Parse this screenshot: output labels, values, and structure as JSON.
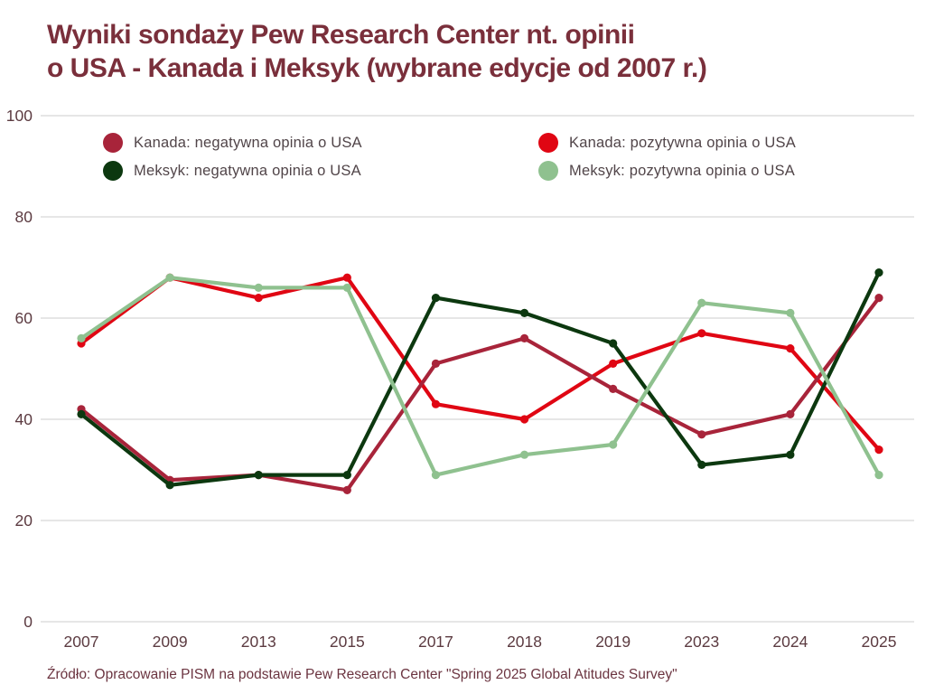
{
  "page": {
    "title_line1": "Wyniki sondaży Pew Research Center nt. opinii",
    "title_line2": "o USA - Kanada i Meksyk (wybrane edycje od 2007 r.)",
    "source": "Źródło: Opracowanie PISM na podstawie Pew Research Center \"Spring 2025 Global Atitudes Survey\"",
    "colors": {
      "title": "#7A2F3B",
      "axis_labels": "#5C3B41",
      "source_text": "#6B3440",
      "gridline": "#D8D8D8",
      "legend_text": "#514549",
      "background": "#FFFFFF"
    }
  },
  "chart_data": {
    "type": "line",
    "title": "Wyniki sondaży Pew Research Center nt. opinii o USA - Kanada i Meksyk (wybrane edycje od 2007 r.)",
    "categories": [
      "2007",
      "2009",
      "2013",
      "2015",
      "2017",
      "2018",
      "2019",
      "2023",
      "2024",
      "2025"
    ],
    "series": [
      {
        "name": "Kanada: negatywna opinia o USA",
        "color": "#A8243A",
        "values": [
          42,
          28,
          29,
          26,
          51,
          56,
          46,
          37,
          41,
          64
        ]
      },
      {
        "name": "Kanada: pozytywna opinia o USA",
        "color": "#E00613",
        "values": [
          55,
          68,
          64,
          68,
          43,
          40,
          51,
          57,
          54,
          34
        ]
      },
      {
        "name": "Meksyk: negatywna opinia o USA",
        "color": "#0C380F",
        "values": [
          41,
          27,
          29,
          29,
          64,
          61,
          55,
          31,
          33,
          69
        ]
      },
      {
        "name": "Meksyk: pozytywna opinia o USA",
        "color": "#8FC18F",
        "values": [
          56,
          68,
          66,
          66,
          29,
          33,
          35,
          63,
          61,
          29
        ]
      }
    ],
    "xlabel": "",
    "ylabel": "",
    "ylim": [
      0,
      100
    ],
    "yticks": [
      0,
      20,
      40,
      60,
      80,
      100
    ],
    "grid": "horizontal",
    "legend_position": "top",
    "legend_columns": [
      [
        0,
        2
      ],
      [
        1,
        3
      ]
    ],
    "draw_order": [
      1,
      0,
      2,
      3
    ],
    "marker": "circle"
  }
}
